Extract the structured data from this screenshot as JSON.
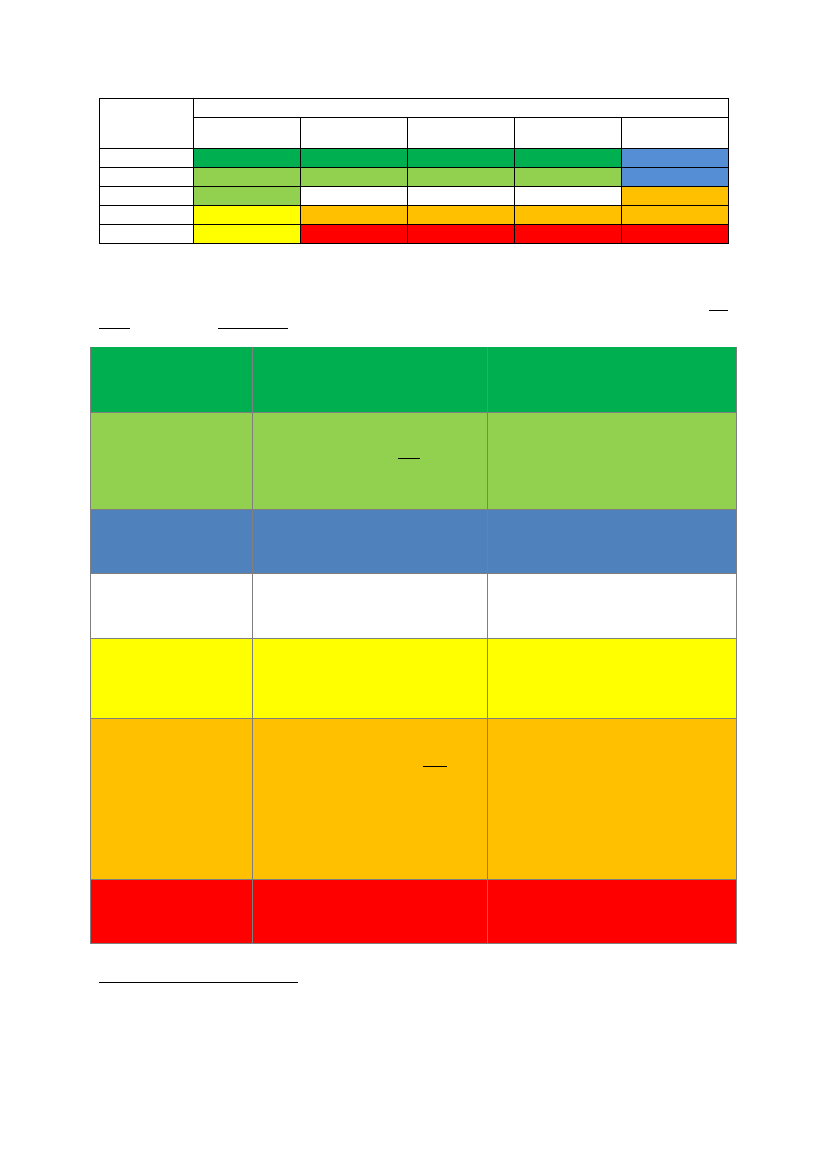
{
  "colors": {
    "dark_green": "#00b050",
    "light_green": "#92d050",
    "blue": "#558ed5",
    "steel_blue": "#4f81bd",
    "white": "#ffffff",
    "yellow": "#ffff00",
    "orange": "#ffc000",
    "red": "#ff0000"
  },
  "matrix": {
    "rows": [
      [
        "dark_green",
        "dark_green",
        "dark_green",
        "dark_green",
        "blue"
      ],
      [
        "light_green",
        "light_green",
        "light_green",
        "light_green",
        "blue"
      ],
      [
        "light_green",
        "white",
        "white",
        "white",
        "orange"
      ],
      [
        "yellow",
        "orange",
        "orange",
        "orange",
        "orange"
      ],
      [
        "yellow",
        "red",
        "red",
        "red",
        "red"
      ]
    ]
  },
  "legend": {
    "rows": [
      "dark_green",
      "light_green",
      "steel_blue",
      "white",
      "yellow",
      "orange",
      "red"
    ]
  }
}
